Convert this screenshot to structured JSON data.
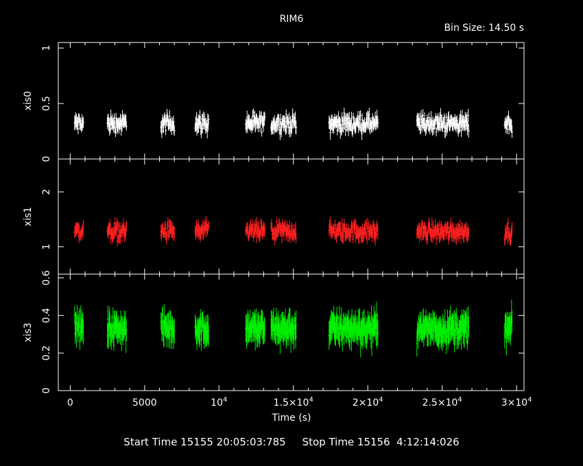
{
  "chart_data": {
    "type": "line",
    "title": "RIM6",
    "bin_size": "Bin Size: 14.50 s",
    "xlabel": "Time (s)",
    "xlim": [
      -800,
      30500
    ],
    "x_ticks": [
      {
        "value": 0,
        "text": "0"
      },
      {
        "value": 5000,
        "text": "5000"
      },
      {
        "value": 10000,
        "mant": "10",
        "exp": "4"
      },
      {
        "value": 15000,
        "mant": "1.5×10",
        "exp": "4"
      },
      {
        "value": 20000,
        "mant": "2×10",
        "exp": "4"
      },
      {
        "value": 25000,
        "mant": "2.5×10",
        "exp": "4"
      },
      {
        "value": 30000,
        "mant": "3×10",
        "exp": "4"
      }
    ],
    "segments": [
      [
        300,
        900
      ],
      [
        2500,
        3800
      ],
      [
        6100,
        7000
      ],
      [
        8400,
        9300
      ],
      [
        11800,
        13100
      ],
      [
        13500,
        15200
      ],
      [
        17400,
        20700
      ],
      [
        23300,
        26800
      ],
      [
        29200,
        29700
      ]
    ],
    "panels": [
      {
        "name": "xis0",
        "color": "#ffffff",
        "ylim": [
          0,
          1.05
        ],
        "yticks": [
          {
            "v": 0,
            "t": "0"
          },
          {
            "v": 0.5,
            "t": "0.5"
          },
          {
            "v": 1,
            "t": "1"
          }
        ],
        "mean": 0.32,
        "spread": 0.06,
        "err": 0.05
      },
      {
        "name": "xis1",
        "color": "#ff2020",
        "ylim": [
          0.5,
          2.6
        ],
        "yticks": [
          {
            "v": 1,
            "t": "1"
          },
          {
            "v": 2,
            "t": "2"
          }
        ],
        "mean": 1.28,
        "spread": 0.12,
        "err": 0.1
      },
      {
        "name": "xis3",
        "color": "#00ee00",
        "ylim": [
          0,
          0.62
        ],
        "yticks": [
          {
            "v": 0,
            "t": "0"
          },
          {
            "v": 0.2,
            "t": "0.2"
          },
          {
            "v": 0.4,
            "t": "0.4"
          },
          {
            "v": 0.6,
            "t": "0.6"
          }
        ],
        "mean": 0.33,
        "spread": 0.05,
        "err": 0.06
      }
    ]
  },
  "footer": {
    "start": "Start Time 15155 20:05:03:785",
    "stop": "Stop Time 15156  4:12:14:026"
  }
}
